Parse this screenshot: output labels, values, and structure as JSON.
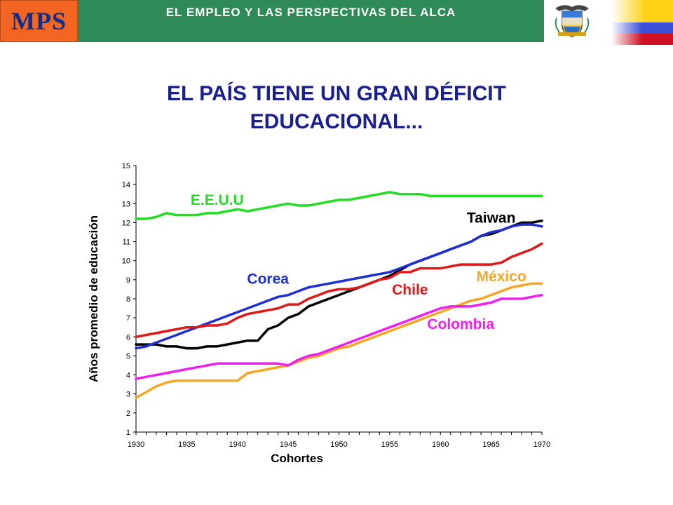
{
  "header": {
    "logo_text": "MPS",
    "title": "EL EMPLEO Y LAS PERSPECTIVAS DEL ALCA",
    "crest_icon": "colombia-coat-of-arms-icon",
    "flag_icon": "colombia-flag-icon",
    "colors": {
      "logo_bg": "#f26522",
      "logo_text": "#0b2f8f",
      "bar": "#2e8b57",
      "flag_yellow": "#fcd116",
      "flag_blue": "#3a4fd8",
      "flag_red": "#ce1126"
    }
  },
  "main": {
    "title_line1": "EL PAÍS TIENE UN GRAN DÉFICIT",
    "title_line2": "EDUCACIONAL..."
  },
  "chart_data": {
    "type": "line",
    "xlabel": "Cohortes",
    "ylabel": "Años promedio de educación",
    "xlim": [
      1930,
      1970
    ],
    "ylim": [
      1,
      15
    ],
    "x_ticks": [
      1930,
      1935,
      1940,
      1945,
      1950,
      1955,
      1960,
      1965,
      1970
    ],
    "y_ticks": [
      1,
      2,
      3,
      4,
      5,
      6,
      7,
      8,
      9,
      10,
      11,
      12,
      13,
      14,
      15
    ],
    "grid": false,
    "legend": "inline labels",
    "x": [
      1930,
      1931,
      1932,
      1933,
      1934,
      1935,
      1936,
      1937,
      1938,
      1939,
      1940,
      1941,
      1942,
      1943,
      1944,
      1945,
      1946,
      1947,
      1948,
      1949,
      1950,
      1951,
      1952,
      1953,
      1954,
      1955,
      1956,
      1957,
      1958,
      1959,
      1960,
      1961,
      1962,
      1963,
      1964,
      1965,
      1966,
      1967,
      1968,
      1969,
      1970
    ],
    "series": [
      {
        "name": "E.E.U.U",
        "color": "#22dd22",
        "label_color": "#22dd22",
        "values": [
          12.2,
          12.2,
          12.3,
          12.5,
          12.4,
          12.4,
          12.4,
          12.5,
          12.5,
          12.6,
          12.7,
          12.6,
          12.7,
          12.8,
          12.9,
          13.0,
          12.9,
          12.9,
          13.0,
          13.1,
          13.2,
          13.2,
          13.3,
          13.4,
          13.5,
          13.6,
          13.5,
          13.5,
          13.5,
          13.4,
          13.4,
          13.4,
          13.4,
          13.4,
          13.4,
          13.4,
          13.4,
          13.4,
          13.4,
          13.4,
          13.4
        ]
      },
      {
        "name": "Taiwan",
        "color": "#000000",
        "label_color": "#000000",
        "values": [
          5.6,
          5.6,
          5.6,
          5.5,
          5.5,
          5.4,
          5.4,
          5.5,
          5.5,
          5.6,
          5.7,
          5.8,
          5.8,
          6.4,
          6.6,
          7.0,
          7.2,
          7.6,
          7.8,
          8.0,
          8.2,
          8.4,
          8.6,
          8.8,
          9.0,
          9.2,
          9.5,
          9.8,
          10.0,
          10.2,
          10.4,
          10.6,
          10.8,
          11.0,
          11.3,
          11.4,
          11.6,
          11.8,
          12.0,
          12.0,
          12.1
        ]
      },
      {
        "name": "Corea",
        "color": "#1f2fd0",
        "label_color": "#1f2fd0",
        "values": [
          5.4,
          5.5,
          5.7,
          5.9,
          6.1,
          6.3,
          6.5,
          6.7,
          6.9,
          7.1,
          7.3,
          7.5,
          7.7,
          7.9,
          8.1,
          8.2,
          8.4,
          8.6,
          8.7,
          8.8,
          8.9,
          9.0,
          9.1,
          9.2,
          9.3,
          9.4,
          9.6,
          9.8,
          10.0,
          10.2,
          10.4,
          10.6,
          10.8,
          11.0,
          11.3,
          11.5,
          11.6,
          11.8,
          11.9,
          11.9,
          11.8
        ]
      },
      {
        "name": "Chile",
        "color": "#e01818",
        "label_color": "#e01818",
        "values": [
          6.0,
          6.1,
          6.2,
          6.3,
          6.4,
          6.5,
          6.5,
          6.6,
          6.6,
          6.7,
          7.0,
          7.2,
          7.3,
          7.4,
          7.5,
          7.7,
          7.7,
          8.0,
          8.2,
          8.4,
          8.5,
          8.5,
          8.6,
          8.8,
          9.0,
          9.1,
          9.4,
          9.4,
          9.6,
          9.6,
          9.6,
          9.7,
          9.8,
          9.8,
          9.8,
          9.8,
          9.9,
          10.2,
          10.4,
          10.6,
          10.9
        ]
      },
      {
        "name": "México",
        "color": "#f5a623",
        "label_color": "#f5a623",
        "values": [
          2.8,
          3.1,
          3.4,
          3.6,
          3.7,
          3.7,
          3.7,
          3.7,
          3.7,
          3.7,
          3.7,
          4.1,
          4.2,
          4.3,
          4.4,
          4.5,
          4.7,
          4.9,
          5.0,
          5.2,
          5.4,
          5.5,
          5.7,
          5.9,
          6.1,
          6.3,
          6.5,
          6.7,
          6.9,
          7.1,
          7.3,
          7.5,
          7.7,
          7.9,
          8.0,
          8.2,
          8.4,
          8.6,
          8.7,
          8.8,
          8.8
        ]
      },
      {
        "name": "Colombia",
        "color": "#f01ff0",
        "label_color": "#f01ff0",
        "values": [
          3.8,
          3.9,
          4.0,
          4.1,
          4.2,
          4.3,
          4.4,
          4.5,
          4.6,
          4.6,
          4.6,
          4.6,
          4.6,
          4.6,
          4.6,
          4.5,
          4.8,
          5.0,
          5.1,
          5.3,
          5.5,
          5.7,
          5.9,
          6.1,
          6.3,
          6.5,
          6.7,
          6.9,
          7.1,
          7.3,
          7.5,
          7.6,
          7.6,
          7.6,
          7.7,
          7.8,
          8.0,
          8.0,
          8.0,
          8.1,
          8.2
        ]
      }
    ]
  }
}
